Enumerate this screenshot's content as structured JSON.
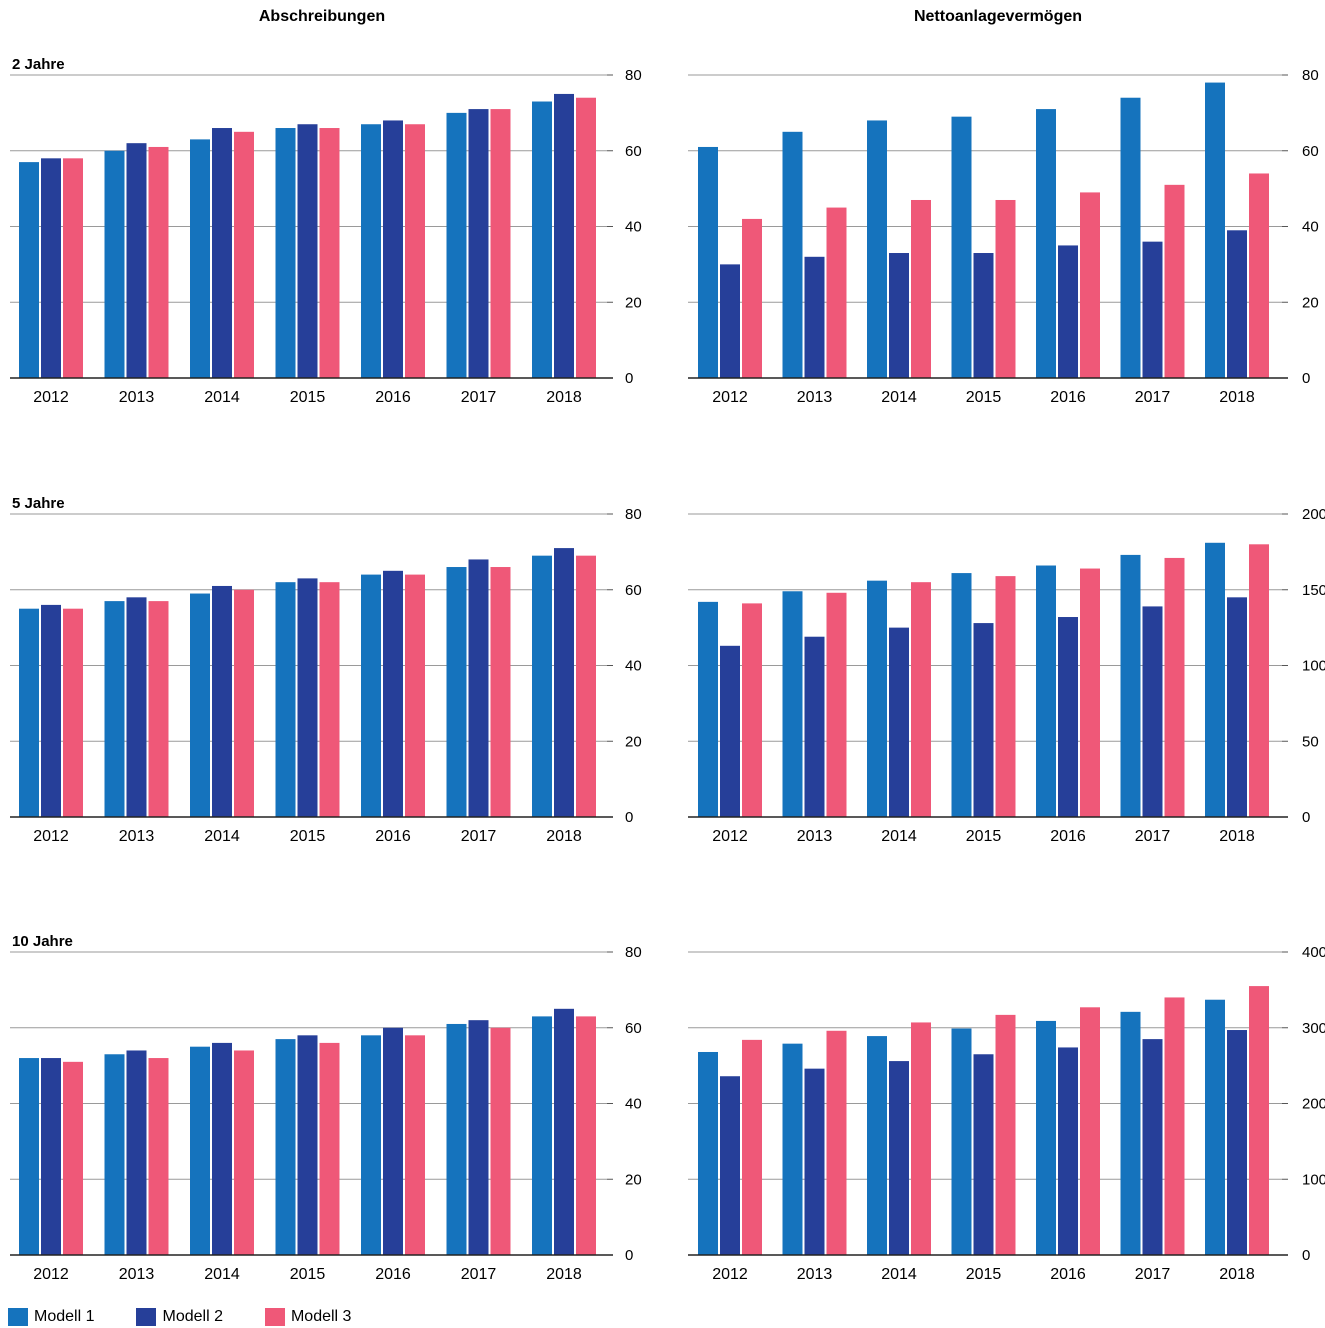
{
  "column_titles": {
    "left": "Abschreibungen",
    "right": "Nettoanlagevermögen"
  },
  "colors": {
    "modell1": "#1573BD",
    "modell2": "#263F99",
    "modell3": "#EF5878"
  },
  "legend": [
    {
      "label": "Modell 1",
      "color": "#1573BD"
    },
    {
      "label": "Modell 2",
      "color": "#263F99"
    },
    {
      "label": "Modell 3",
      "color": "#EF5878"
    }
  ],
  "chart_data": [
    {
      "type": "bar",
      "row_label": "2 Jahre",
      "column": "Abschreibungen",
      "categories": [
        "2012",
        "2013",
        "2014",
        "2015",
        "2016",
        "2017",
        "2018"
      ],
      "ylim": [
        0,
        80
      ],
      "yticks": [
        0,
        20,
        40,
        60,
        80
      ],
      "series": [
        {
          "name": "Modell 1",
          "values": [
            57,
            60,
            63,
            66,
            67,
            70,
            73
          ]
        },
        {
          "name": "Modell 2",
          "values": [
            58,
            62,
            66,
            67,
            68,
            71,
            75
          ]
        },
        {
          "name": "Modell 3",
          "values": [
            58,
            61,
            65,
            66,
            67,
            71,
            74
          ]
        }
      ]
    },
    {
      "type": "bar",
      "row_label": "",
      "column": "Nettoanlagevermögen",
      "categories": [
        "2012",
        "2013",
        "2014",
        "2015",
        "2016",
        "2017",
        "2018"
      ],
      "ylim": [
        0,
        80
      ],
      "yticks": [
        0,
        20,
        40,
        60,
        80
      ],
      "series": [
        {
          "name": "Modell 1",
          "values": [
            61,
            65,
            68,
            69,
            71,
            74,
            78
          ]
        },
        {
          "name": "Modell 2",
          "values": [
            30,
            32,
            33,
            33,
            35,
            36,
            39
          ]
        },
        {
          "name": "Modell 3",
          "values": [
            42,
            45,
            47,
            47,
            49,
            51,
            54
          ]
        }
      ]
    },
    {
      "type": "bar",
      "row_label": "5 Jahre",
      "column": "Abschreibungen",
      "categories": [
        "2012",
        "2013",
        "2014",
        "2015",
        "2016",
        "2017",
        "2018"
      ],
      "ylim": [
        0,
        80
      ],
      "yticks": [
        0,
        20,
        40,
        60,
        80
      ],
      "series": [
        {
          "name": "Modell 1",
          "values": [
            55,
            57,
            59,
            62,
            64,
            66,
            69
          ]
        },
        {
          "name": "Modell 2",
          "values": [
            56,
            58,
            61,
            63,
            65,
            68,
            71
          ]
        },
        {
          "name": "Modell 3",
          "values": [
            55,
            57,
            60,
            62,
            64,
            66,
            69
          ]
        }
      ]
    },
    {
      "type": "bar",
      "row_label": "",
      "column": "Nettoanlagevermögen",
      "categories": [
        "2012",
        "2013",
        "2014",
        "2015",
        "2016",
        "2017",
        "2018"
      ],
      "ylim": [
        0,
        200
      ],
      "yticks": [
        0,
        50,
        100,
        150,
        200
      ],
      "series": [
        {
          "name": "Modell 1",
          "values": [
            142,
            149,
            156,
            161,
            166,
            173,
            181
          ]
        },
        {
          "name": "Modell 2",
          "values": [
            113,
            119,
            125,
            128,
            132,
            139,
            145
          ]
        },
        {
          "name": "Modell 3",
          "values": [
            141,
            148,
            155,
            159,
            164,
            171,
            180
          ]
        }
      ]
    },
    {
      "type": "bar",
      "row_label": "10 Jahre",
      "column": "Abschreibungen",
      "categories": [
        "2012",
        "2013",
        "2014",
        "2015",
        "2016",
        "2017",
        "2018"
      ],
      "ylim": [
        0,
        80
      ],
      "yticks": [
        0,
        20,
        40,
        60,
        80
      ],
      "series": [
        {
          "name": "Modell 1",
          "values": [
            52,
            53,
            55,
            57,
            58,
            61,
            63
          ]
        },
        {
          "name": "Modell 2",
          "values": [
            52,
            54,
            56,
            58,
            60,
            62,
            65
          ]
        },
        {
          "name": "Modell 3",
          "values": [
            51,
            52,
            54,
            56,
            58,
            60,
            63
          ]
        }
      ]
    },
    {
      "type": "bar",
      "row_label": "",
      "column": "Nettoanlagevermögen",
      "categories": [
        "2012",
        "2013",
        "2014",
        "2015",
        "2016",
        "2017",
        "2018"
      ],
      "ylim": [
        0,
        400
      ],
      "yticks": [
        0,
        100,
        200,
        300,
        400
      ],
      "series": [
        {
          "name": "Modell 1",
          "values": [
            268,
            279,
            289,
            299,
            309,
            321,
            337
          ]
        },
        {
          "name": "Modell 2",
          "values": [
            236,
            246,
            256,
            265,
            274,
            285,
            297
          ]
        },
        {
          "name": "Modell 3",
          "values": [
            284,
            296,
            307,
            317,
            327,
            340,
            355
          ]
        }
      ]
    }
  ]
}
